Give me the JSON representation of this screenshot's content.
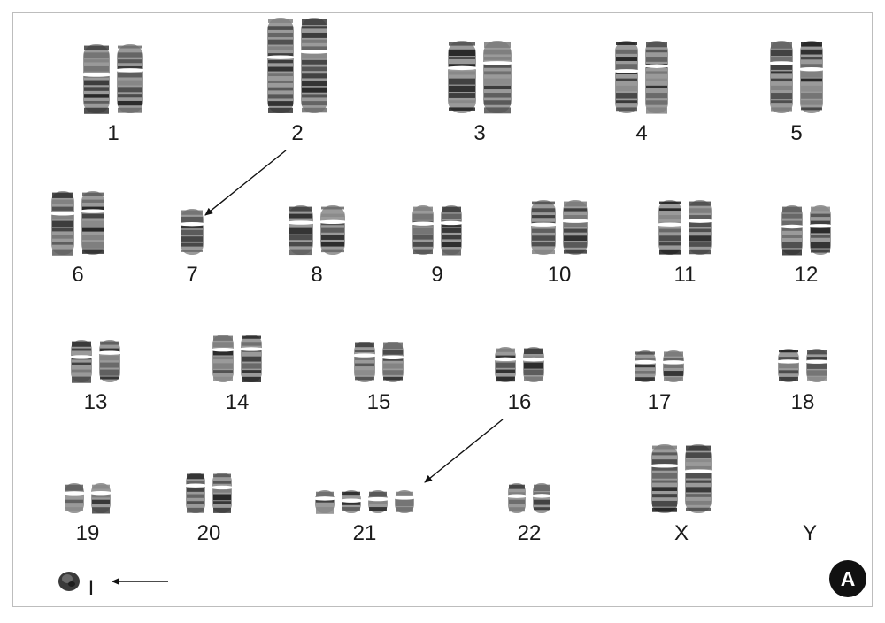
{
  "karyotype": {
    "labels": [
      "1",
      "2",
      "3",
      "4",
      "5",
      "6",
      "7",
      "8",
      "9",
      "10",
      "11",
      "12",
      "13",
      "14",
      "15",
      "16",
      "17",
      "18",
      "19",
      "20",
      "21",
      "22",
      "X",
      "Y"
    ],
    "marker_label": "I",
    "panel_badge": "A"
  }
}
